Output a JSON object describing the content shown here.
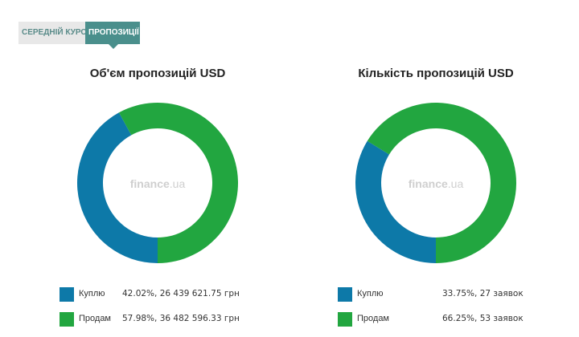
{
  "tabs": [
    {
      "label": "СЕРЕДНІЙ КУРС",
      "active": false
    },
    {
      "label": "ПРОПОЗИЦІЇ",
      "active": true
    }
  ],
  "colors": {
    "buy": "#0d79a8",
    "sell": "#22a640"
  },
  "watermark": {
    "main": "finance",
    "sub": ".ua"
  },
  "chart_data": [
    {
      "type": "pie",
      "title": "Об'єм пропозицій USD",
      "slices": [
        {
          "label": "Куплю",
          "value": 42.02,
          "detail": "42.02%, 26 439 621.75 грн"
        },
        {
          "label": "Продам",
          "value": 57.98,
          "detail": "57.98%, 36 482 596.33 грн"
        }
      ]
    },
    {
      "type": "pie",
      "title": "Кількість пропозицій USD",
      "slices": [
        {
          "label": "Куплю",
          "value": 33.75,
          "detail": "33.75%, 27 заявок"
        },
        {
          "label": "Продам",
          "value": 66.25,
          "detail": "66.25%, 53 заявок"
        }
      ]
    }
  ]
}
